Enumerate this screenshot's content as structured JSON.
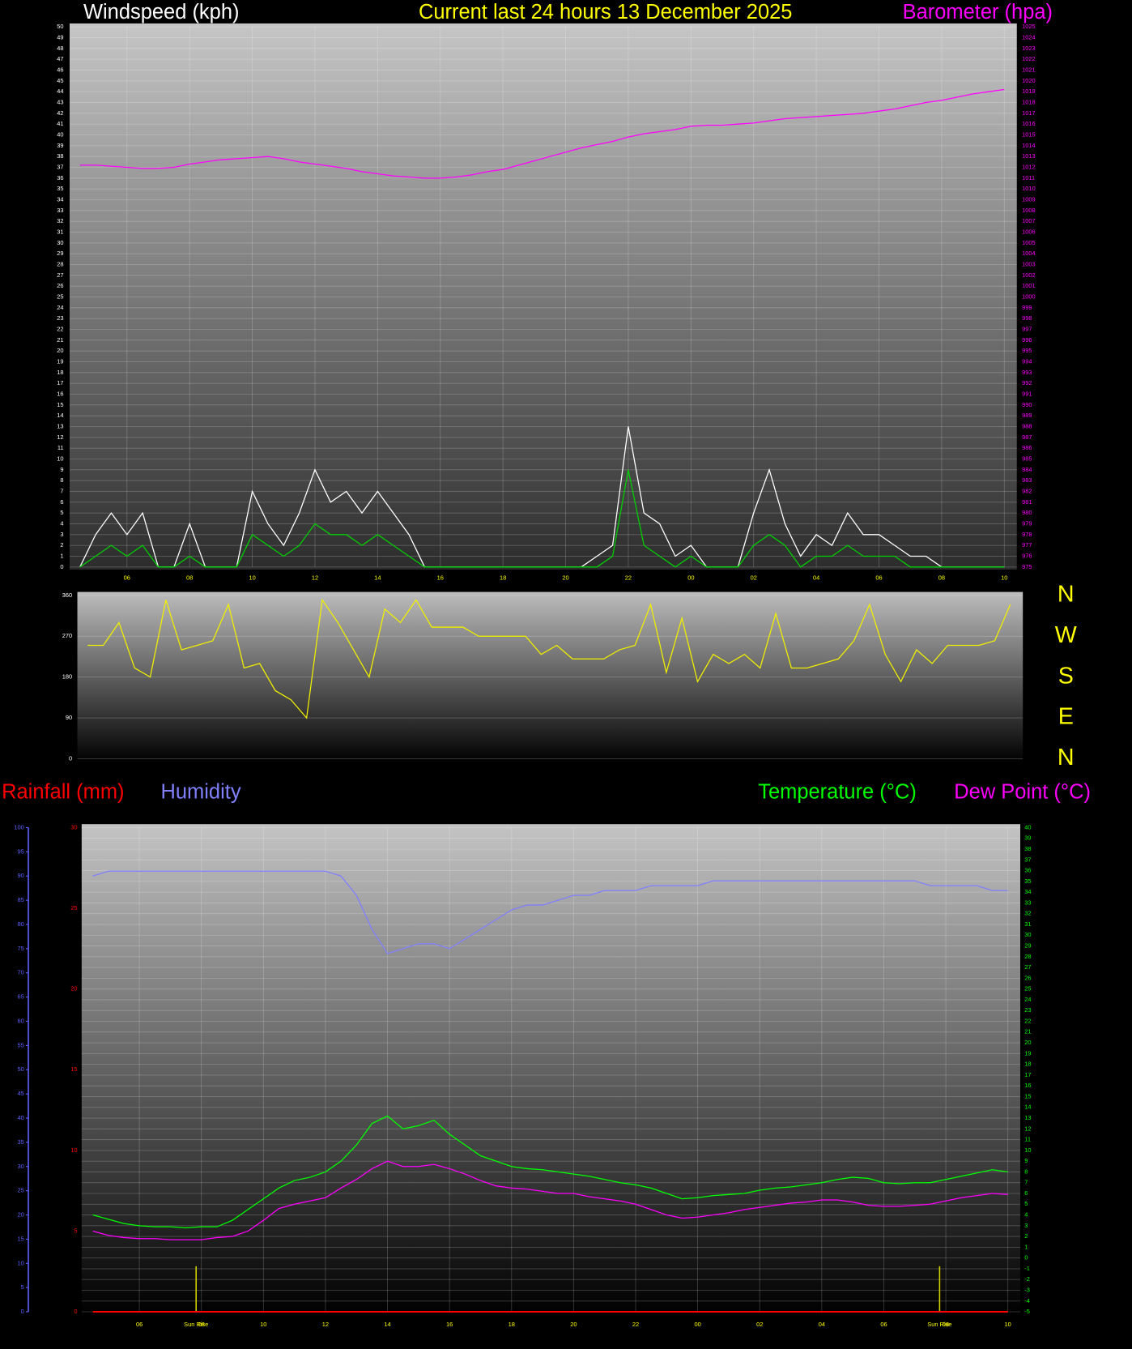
{
  "chart_data": [
    {
      "type": "line",
      "title": "Current last 24 hours 13 December 2025",
      "ylabel": "Windspeed (kph)",
      "y2label": "Barometer (hpa)",
      "x": [
        4.5,
        5,
        5.5,
        6,
        6.5,
        7,
        7.5,
        8,
        8.5,
        9,
        9.5,
        10,
        10.5,
        11,
        11.5,
        12,
        12.5,
        13,
        13.5,
        14,
        14.5,
        15,
        15.5,
        16,
        16.5,
        17,
        17.5,
        18,
        18.5,
        19,
        19.5,
        20,
        20.5,
        21,
        21.5,
        22,
        22.5,
        23,
        23.5,
        24,
        24.5,
        25,
        25.5,
        26,
        26.5,
        27,
        27.5,
        28,
        28.5,
        29,
        29.5,
        30,
        30.5,
        31,
        31.5,
        32,
        32.5,
        33,
        33.5,
        34
      ],
      "xlim": [
        4.17,
        34.4
      ],
      "xticks": [
        {
          "value": 6,
          "label": "06"
        },
        {
          "value": 8,
          "label": "08"
        },
        10,
        12,
        14,
        16,
        18,
        20,
        22,
        {
          "value": 24,
          "label": "00"
        },
        {
          "value": 26,
          "label": "02"
        },
        {
          "value": 28,
          "label": "04"
        },
        {
          "value": 30,
          "label": "06"
        },
        {
          "value": 32,
          "label": "08"
        },
        {
          "value": 34,
          "label": "10"
        }
      ],
      "ylim": [
        0,
        50
      ],
      "yticks": [
        0,
        1,
        2,
        3,
        4,
        5,
        6,
        7,
        8,
        9,
        10,
        11,
        12,
        13,
        14,
        15,
        16,
        17,
        18,
        19,
        20,
        21,
        22,
        23,
        24,
        25,
        26,
        27,
        28,
        29,
        30,
        31,
        32,
        33,
        34,
        35,
        36,
        37,
        38,
        39,
        40,
        41,
        42,
        43,
        44,
        45,
        46,
        47,
        48,
        49,
        50
      ],
      "y2lim": [
        975,
        1025
      ],
      "y2ticks": [
        975,
        976,
        977,
        978,
        979,
        980,
        981,
        982,
        983,
        984,
        985,
        986,
        987,
        988,
        989,
        990,
        991,
        992,
        993,
        994,
        995,
        996,
        997,
        998,
        999,
        1000,
        1001,
        1002,
        1003,
        1004,
        1005,
        1006,
        1007,
        1008,
        1009,
        1010,
        1011,
        1012,
        1013,
        1014,
        1015,
        1016,
        1017,
        1018,
        1019,
        1020,
        1021,
        1022,
        1023,
        1024,
        1025
      ],
      "grid": true,
      "series": [
        {
          "color": "#ffffff",
          "values": [
            0,
            3,
            5,
            3,
            5,
            0,
            0,
            4,
            0,
            0,
            0,
            7,
            4,
            2,
            5,
            9,
            6,
            7,
            5,
            7,
            5,
            3,
            0,
            0,
            0,
            0,
            0,
            0,
            0,
            0,
            0,
            0,
            0,
            1,
            2,
            13,
            5,
            4,
            1,
            2,
            0,
            0,
            0,
            5,
            9,
            4,
            1,
            3,
            2,
            5,
            3,
            3,
            2,
            1,
            1,
            0,
            0,
            0,
            0,
            0
          ]
        },
        {
          "color": "#00d000",
          "values": [
            0,
            1,
            2,
            1,
            2,
            0,
            0,
            1,
            0,
            0,
            0,
            3,
            2,
            1,
            2,
            4,
            3,
            3,
            2,
            3,
            2,
            1,
            0,
            0,
            0,
            0,
            0,
            0,
            0,
            0,
            0,
            0,
            0,
            0,
            1,
            9,
            2,
            1,
            0,
            1,
            0,
            0,
            0,
            2,
            3,
            2,
            0,
            1,
            1,
            2,
            1,
            1,
            1,
            0,
            0,
            0,
            0,
            0,
            0,
            0
          ]
        },
        {
          "name": "Barometer (hpa)",
          "color": "#ff00ff",
          "axis": "y2",
          "values": [
            1012.2,
            1012.2,
            1012.1,
            1012.0,
            1011.9,
            1011.9,
            1012.0,
            1012.3,
            1012.5,
            1012.7,
            1012.8,
            1012.9,
            1013.0,
            1012.8,
            1012.5,
            1012.3,
            1012.1,
            1011.9,
            1011.6,
            1011.4,
            1011.2,
            1011.1,
            1011.0,
            1011.0,
            1011.1,
            1011.3,
            1011.6,
            1011.8,
            1012.2,
            1012.6,
            1013.0,
            1013.4,
            1013.8,
            1014.1,
            1014.4,
            1014.8,
            1015.1,
            1015.3,
            1015.5,
            1015.8,
            1015.9,
            1015.9,
            1016.0,
            1016.1,
            1016.3,
            1016.5,
            1016.6,
            1016.7,
            1016.8,
            1016.9,
            1017.0,
            1017.2,
            1017.4,
            1017.7,
            1018.0,
            1018.2,
            1018.5,
            1018.8,
            1019.0,
            1019.2
          ]
        }
      ]
    },
    {
      "type": "line",
      "x": [
        4.5,
        5,
        5.5,
        6,
        6.5,
        7,
        7.5,
        8,
        8.5,
        9,
        9.5,
        10,
        10.5,
        11,
        11.5,
        12,
        12.5,
        13,
        13.5,
        14,
        14.5,
        15,
        15.5,
        16,
        16.5,
        17,
        17.5,
        18,
        18.5,
        19,
        19.5,
        20,
        20.5,
        21,
        21.5,
        22,
        22.5,
        23,
        23.5,
        24,
        24.5,
        25,
        25.5,
        26,
        26.5,
        27,
        27.5,
        28,
        28.5,
        29,
        29.5,
        30,
        30.5,
        31,
        31.5,
        32,
        32.5,
        33,
        33.5,
        34
      ],
      "xlim": [
        4.17,
        34.4
      ],
      "ylim": [
        0,
        360
      ],
      "yticks": [
        0,
        90,
        180,
        270,
        360
      ],
      "compass_labels": [
        "N",
        "E",
        "S",
        "W",
        "N"
      ],
      "grid": true,
      "series": [
        {
          "color": "#f0f000",
          "values": [
            250,
            250,
            300,
            200,
            180,
            350,
            240,
            250,
            260,
            340,
            200,
            210,
            150,
            130,
            90,
            350,
            300,
            240,
            180,
            330,
            300,
            350,
            290,
            290,
            290,
            270,
            270,
            270,
            270,
            230,
            250,
            220,
            220,
            220,
            240,
            250,
            340,
            190,
            310,
            170,
            230,
            210,
            230,
            200,
            320,
            200,
            200,
            210,
            220,
            260,
            340,
            230,
            170,
            240,
            210,
            250,
            250,
            250,
            260,
            340
          ]
        }
      ]
    },
    {
      "type": "line",
      "x": [
        4.5,
        5,
        5.5,
        6,
        6.5,
        7,
        7.5,
        8,
        8.5,
        9,
        9.5,
        10,
        10.5,
        11,
        11.5,
        12,
        12.5,
        13,
        13.5,
        14,
        14.5,
        15,
        15.5,
        16,
        16.5,
        17,
        17.5,
        18,
        18.5,
        19,
        19.5,
        20,
        20.5,
        21,
        21.5,
        22,
        22.5,
        23,
        23.5,
        24,
        24.5,
        25,
        25.5,
        26,
        26.5,
        27,
        27.5,
        28,
        28.5,
        29,
        29.5,
        30,
        30.5,
        31,
        31.5,
        32,
        32.5,
        33,
        33.5,
        34
      ],
      "xlim": [
        4.14,
        34.4
      ],
      "xticks": [
        {
          "value": 6,
          "label": "06"
        },
        {
          "value": 8,
          "label": "08"
        },
        10,
        12,
        14,
        16,
        18,
        20,
        22,
        {
          "value": 24,
          "label": "00"
        },
        {
          "value": 26,
          "label": "02"
        },
        {
          "value": 28,
          "label": "04"
        },
        {
          "value": 30,
          "label": "06"
        },
        {
          "value": 32,
          "label": "08"
        },
        {
          "value": 34,
          "label": "10"
        }
      ],
      "ylim": [
        0,
        30
      ],
      "yticks": [
        0,
        5,
        10,
        15,
        20,
        25,
        30
      ],
      "y2lim": [
        -5,
        40
      ],
      "y2ticks": [
        -5,
        -4,
        -3,
        -2,
        -1,
        0,
        1,
        2,
        3,
        4,
        5,
        6,
        7,
        8,
        9,
        10,
        11,
        12,
        13,
        14,
        15,
        16,
        17,
        18,
        19,
        20,
        21,
        22,
        23,
        24,
        25,
        26,
        27,
        28,
        29,
        30,
        31,
        32,
        33,
        34,
        35,
        36,
        37,
        38,
        39,
        40
      ],
      "y3lim": [
        0,
        100
      ],
      "y3ticks": [
        0,
        5,
        10,
        15,
        20,
        25,
        30,
        35,
        40,
        45,
        50,
        55,
        60,
        65,
        70,
        75,
        80,
        85,
        90,
        95,
        100
      ],
      "grid": true,
      "annotations": [
        {
          "x": 7.83,
          "text": "Sun Rise"
        },
        {
          "x": 31.8,
          "text": "Sun Rise"
        }
      ],
      "series": [
        {
          "name": "Rainfall (mm)",
          "color": "#ff0000",
          "values": [
            0,
            0,
            0,
            0,
            0,
            0,
            0,
            0,
            0,
            0,
            0,
            0,
            0,
            0,
            0,
            0,
            0,
            0,
            0,
            0,
            0,
            0,
            0,
            0,
            0,
            0,
            0,
            0,
            0,
            0,
            0,
            0,
            0,
            0,
            0,
            0,
            0,
            0,
            0,
            0,
            0,
            0,
            0,
            0,
            0,
            0,
            0,
            0,
            0,
            0,
            0,
            0,
            0,
            0,
            0,
            0,
            0,
            0,
            0,
            0
          ]
        },
        {
          "name": "Humidity",
          "color": "#8080ff",
          "axis": "y3",
          "values": [
            90,
            91,
            91,
            91,
            91,
            91,
            91,
            91,
            91,
            91,
            91,
            91,
            91,
            91,
            91,
            91,
            90,
            86,
            79,
            74,
            75,
            76,
            76,
            75,
            77,
            79,
            81,
            83,
            84,
            84,
            85,
            86,
            86,
            87,
            87,
            87,
            88,
            88,
            88,
            88,
            89,
            89,
            89,
            89,
            89,
            89,
            89,
            89,
            89,
            89,
            89,
            89,
            89,
            89,
            88,
            88,
            88,
            88,
            87,
            87
          ]
        },
        {
          "name": "Temperature (°C)",
          "color": "#00ff00",
          "axis": "y2",
          "values": [
            4.0,
            3.6,
            3.2,
            3.0,
            2.9,
            2.9,
            2.8,
            2.9,
            2.9,
            3.5,
            4.5,
            5.5,
            6.5,
            7.2,
            7.5,
            8.0,
            9.0,
            10.5,
            12.5,
            13.2,
            12.0,
            12.3,
            12.8,
            11.5,
            10.5,
            9.5,
            9.0,
            8.5,
            8.3,
            8.2,
            8.0,
            7.8,
            7.6,
            7.3,
            7.0,
            6.8,
            6.5,
            6.0,
            5.5,
            5.6,
            5.8,
            5.9,
            6.0,
            6.3,
            6.5,
            6.6,
            6.8,
            7.0,
            7.3,
            7.5,
            7.4,
            7.0,
            6.9,
            7.0,
            7.0,
            7.3,
            7.6,
            7.9,
            8.2,
            8.0
          ]
        },
        {
          "name": "Dew Point (°C)",
          "color": "#ff00ff",
          "axis": "y2",
          "values": [
            2.5,
            2.1,
            1.9,
            1.8,
            1.8,
            1.7,
            1.7,
            1.7,
            1.9,
            2.0,
            2.5,
            3.5,
            4.6,
            5.0,
            5.3,
            5.6,
            6.5,
            7.3,
            8.3,
            9.0,
            8.5,
            8.5,
            8.7,
            8.3,
            7.8,
            7.2,
            6.7,
            6.5,
            6.4,
            6.2,
            6.0,
            6.0,
            5.7,
            5.5,
            5.3,
            5.0,
            4.5,
            4.0,
            3.7,
            3.8,
            4.0,
            4.2,
            4.5,
            4.7,
            4.9,
            5.1,
            5.2,
            5.4,
            5.4,
            5.2,
            4.9,
            4.8,
            4.8,
            4.9,
            5.0,
            5.3,
            5.6,
            5.8,
            6.0,
            5.9
          ]
        }
      ]
    }
  ]
}
